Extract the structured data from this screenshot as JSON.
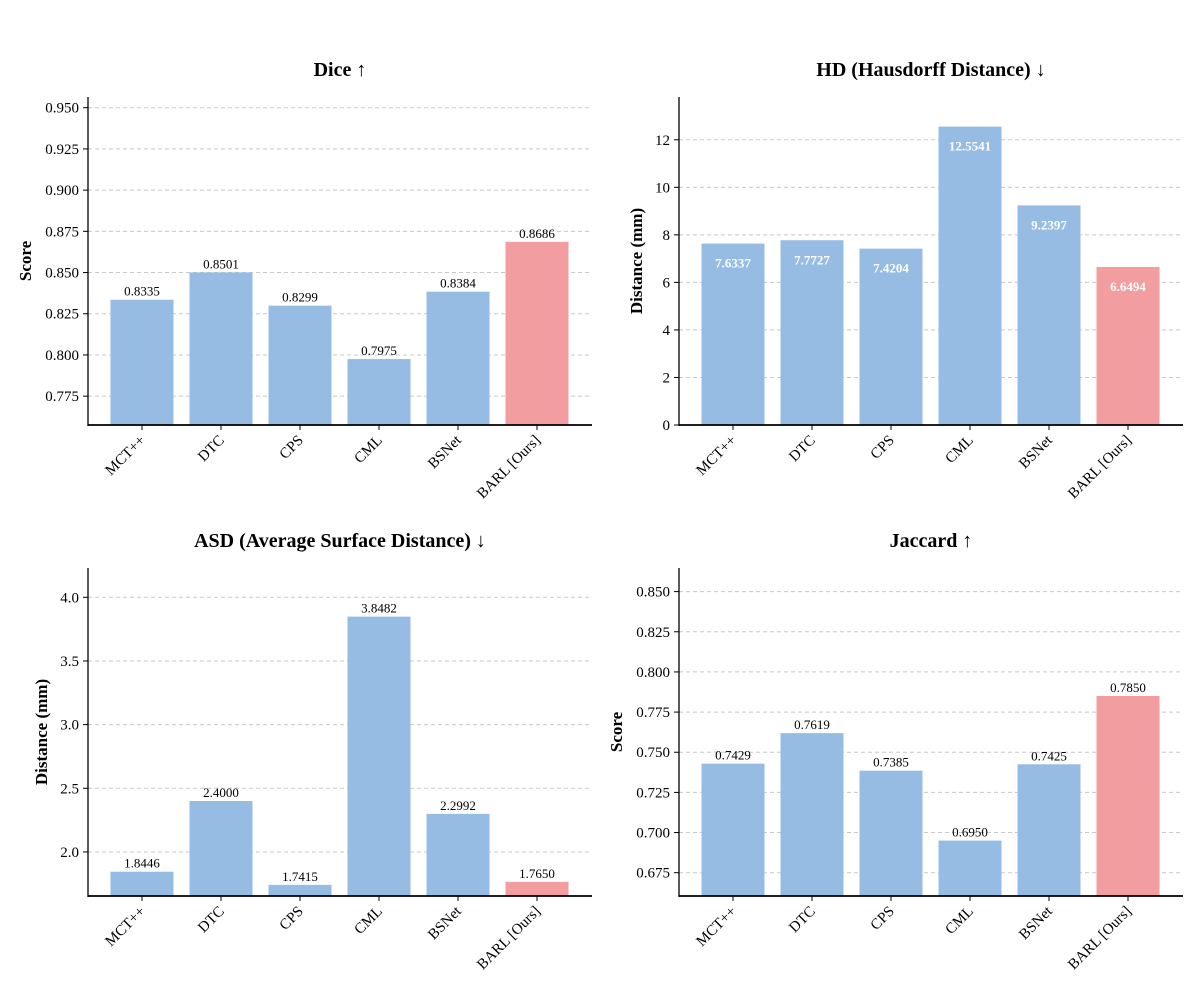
{
  "colors": {
    "bar": "#96bce4",
    "highlight": "#f29da0",
    "grid": "#c8c8c8",
    "axis": "#000000"
  },
  "chart_data": [
    {
      "type": "bar",
      "title": "Dice ↑",
      "ylabel": "Score",
      "xlabel": "",
      "categories": [
        "MCT++",
        "DTC",
        "CPS",
        "CML",
        "BSNet",
        "BARL [Ours]"
      ],
      "values": [
        0.8335,
        0.8501,
        0.8299,
        0.7975,
        0.8384,
        0.8686
      ],
      "value_labels": [
        "0.8335",
        "0.8501",
        "0.8299",
        "0.7975",
        "0.8384",
        "0.8686"
      ],
      "highlight_index": 5,
      "ylim": [
        0.7575,
        0.9565
      ],
      "yticks": [
        0.775,
        0.8,
        0.825,
        0.85,
        0.875,
        0.9,
        0.925,
        0.95
      ],
      "ytick_labels": [
        "0.775",
        "0.800",
        "0.825",
        "0.850",
        "0.875",
        "0.900",
        "0.925",
        "0.950"
      ],
      "label_position": "above",
      "grid": true
    },
    {
      "type": "bar",
      "title": "HD (Hausdorff Distance) ↓",
      "ylabel": "Distance (mm)",
      "xlabel": "",
      "categories": [
        "MCT++",
        "DTC",
        "CPS",
        "CML",
        "BSNet",
        "BARL [Ours]"
      ],
      "values": [
        7.6337,
        7.7727,
        7.4204,
        12.5541,
        9.2397,
        6.6494
      ],
      "value_labels": [
        "7.6337",
        "7.7727",
        "7.4204",
        "12.5541",
        "9.2397",
        "6.6494"
      ],
      "highlight_index": 5,
      "ylim": [
        0,
        13.8
      ],
      "yticks": [
        0,
        2,
        4,
        6,
        8,
        10,
        12
      ],
      "ytick_labels": [
        "0",
        "2",
        "4",
        "6",
        "8",
        "10",
        "12"
      ],
      "label_position": "inside",
      "grid": true
    },
    {
      "type": "bar",
      "title": "ASD (Average Surface Distance) ↓",
      "ylabel": "Distance (mm)",
      "xlabel": "",
      "categories": [
        "MCT++",
        "DTC",
        "CPS",
        "CML",
        "BSNet",
        "BARL [Ours]"
      ],
      "values": [
        1.8446,
        2.4,
        1.7415,
        3.8482,
        2.2992,
        1.765
      ],
      "value_labels": [
        "1.8446",
        "2.4000",
        "1.7415",
        "3.8482",
        "2.2992",
        "1.7650"
      ],
      "highlight_index": 5,
      "ylim": [
        1.654,
        4.23
      ],
      "yticks": [
        2.0,
        2.5,
        3.0,
        3.5,
        4.0
      ],
      "ytick_labels": [
        "2.0",
        "2.5",
        "3.0",
        "3.5",
        "4.0"
      ],
      "label_position": "above",
      "grid": true
    },
    {
      "type": "bar",
      "title": "Jaccard ↑",
      "ylabel": "Score",
      "xlabel": "",
      "categories": [
        "MCT++",
        "DTC",
        "CPS",
        "CML",
        "BSNet",
        "BARL [Ours]"
      ],
      "values": [
        0.7429,
        0.7619,
        0.7385,
        0.695,
        0.7425,
        0.785
      ],
      "value_labels": [
        "0.7429",
        "0.7619",
        "0.7385",
        "0.6950",
        "0.7425",
        "0.7850"
      ],
      "highlight_index": 5,
      "ylim": [
        0.6605,
        0.8647
      ],
      "yticks": [
        0.675,
        0.7,
        0.725,
        0.75,
        0.775,
        0.8,
        0.825,
        0.85
      ],
      "ytick_labels": [
        "0.675",
        "0.700",
        "0.725",
        "0.750",
        "0.775",
        "0.800",
        "0.825",
        "0.850"
      ],
      "label_position": "above",
      "grid": true
    }
  ]
}
